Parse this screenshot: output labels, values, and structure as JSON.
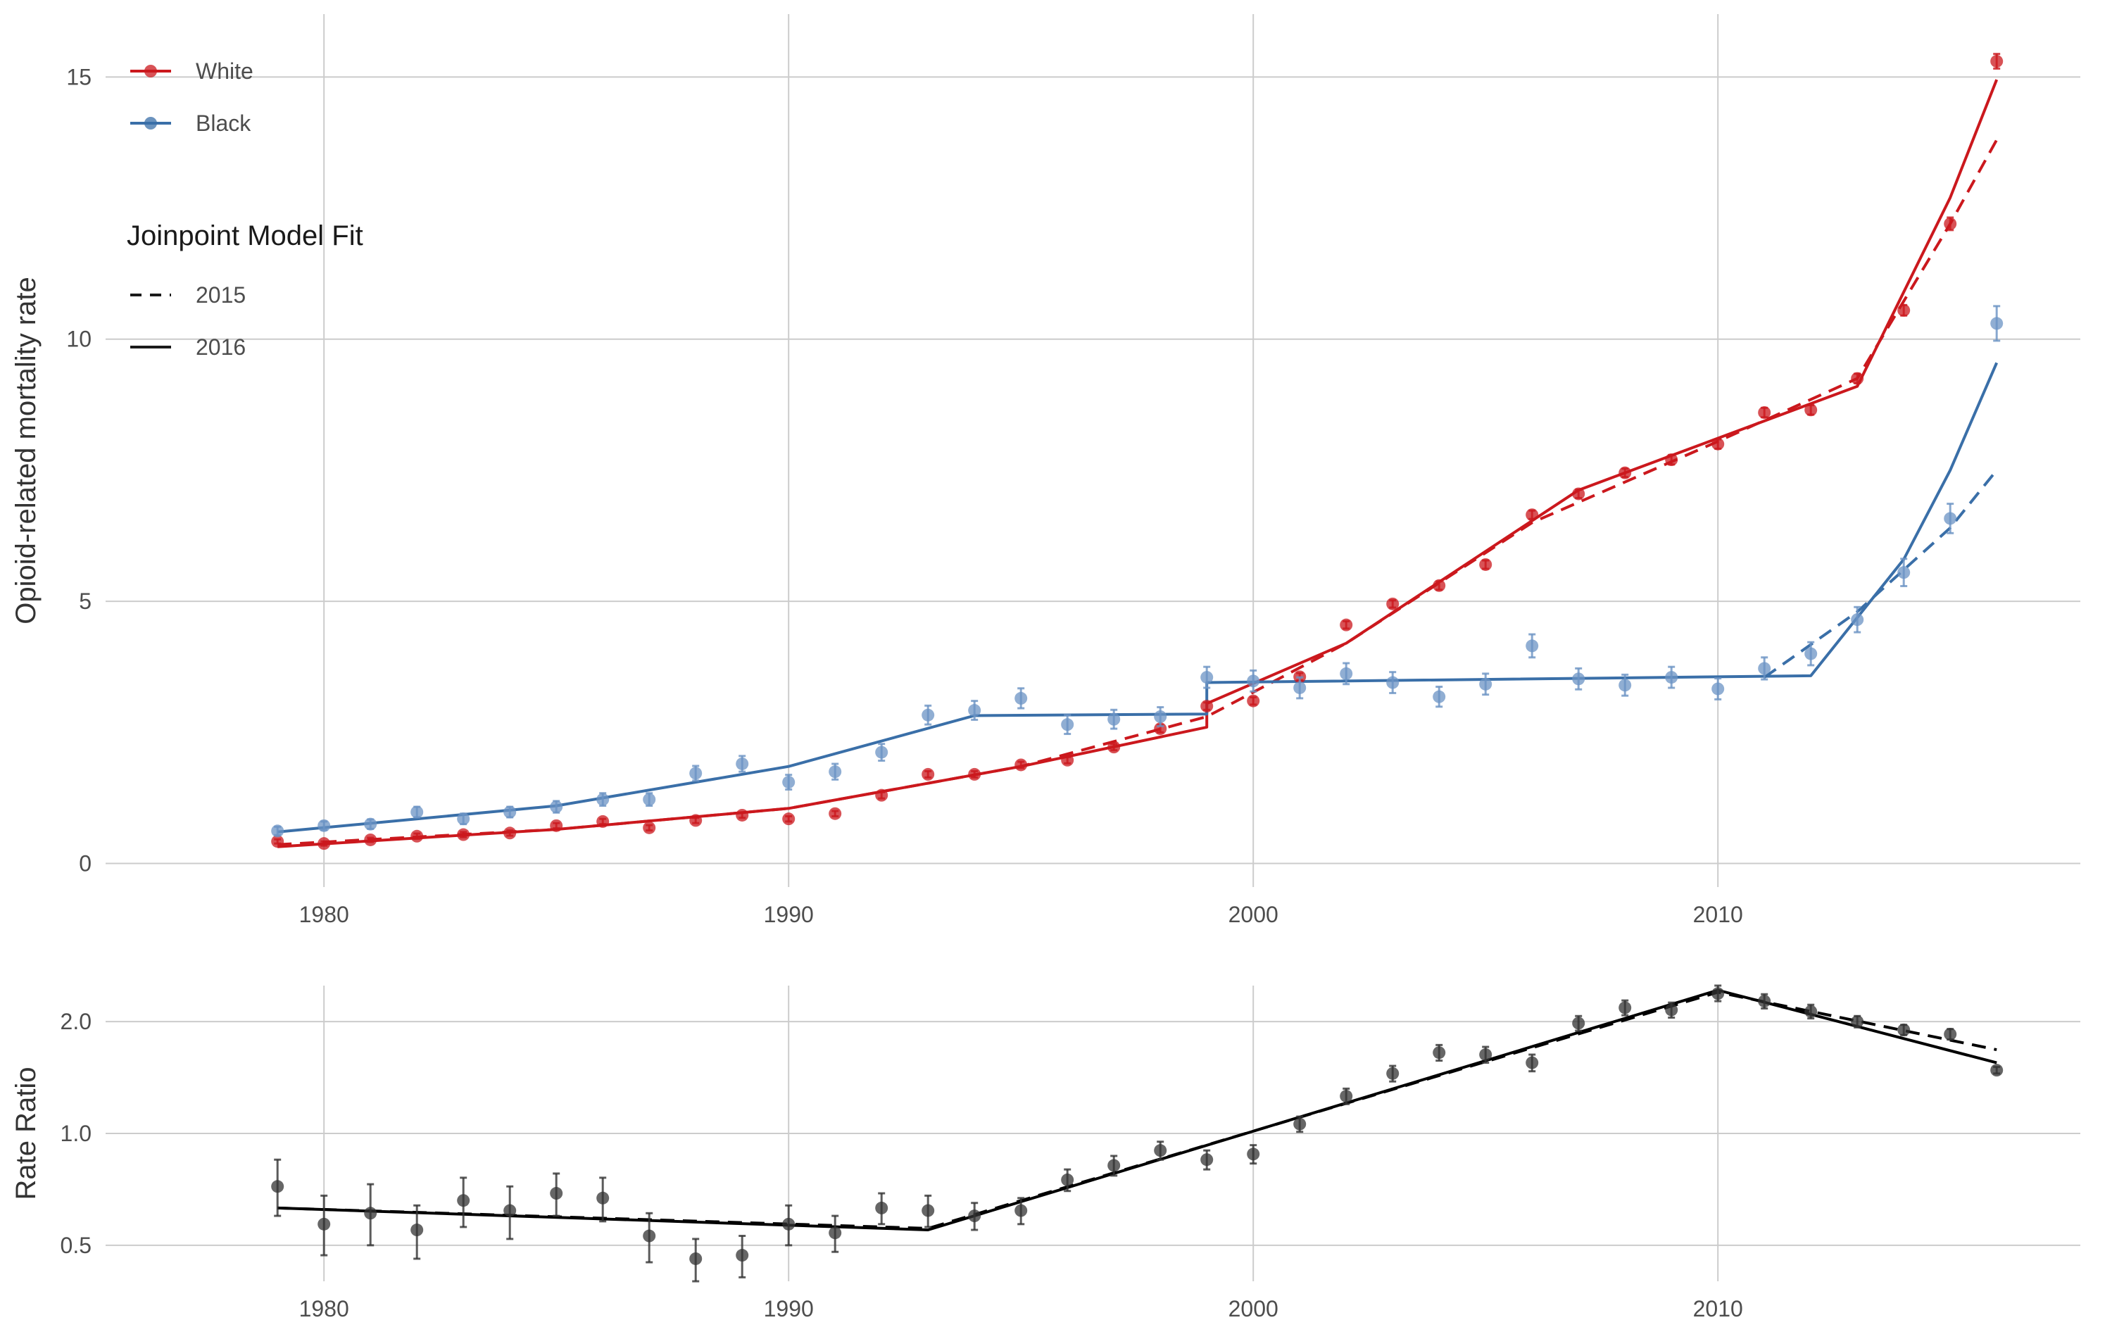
{
  "chart_data": [
    {
      "type": "line",
      "ylabel": "Opioid-related mortality rate",
      "xlabel": "",
      "xlim": [
        1975.3,
        2017.8
      ],
      "ylim": [
        -0.45,
        16.2
      ],
      "x_ticks": [
        1980,
        1990,
        2000,
        2010
      ],
      "y_ticks": [
        0,
        5,
        10,
        15
      ],
      "grid": true,
      "legend_position": "top-left",
      "legend": {
        "groups": [
          {
            "title": "",
            "entries": [
              {
                "label": "White",
                "style": "line-point",
                "color": "#cb181d"
              },
              {
                "label": "Black",
                "style": "line-point",
                "color": "#3a6fa8"
              }
            ]
          },
          {
            "title": "Joinpoint Model Fit",
            "entries": [
              {
                "label": "2015",
                "style": "dashed",
                "color": "#1a1a1a"
              },
              {
                "label": "2016",
                "style": "solid",
                "color": "#1a1a1a"
              }
            ]
          }
        ]
      },
      "observed": [
        {
          "name": "White",
          "color": "#cb181d",
          "x": [
            1979,
            1980,
            1981,
            1982,
            1983,
            1984,
            1985,
            1986,
            1987,
            1988,
            1989,
            1990,
            1991,
            1992,
            1993,
            1994,
            1995,
            1996,
            1997,
            1998,
            1999,
            2000,
            2001,
            2002,
            2003,
            2004,
            2005,
            2006,
            2007,
            2008,
            2009,
            2010,
            2011,
            2012,
            2013,
            2014,
            2015,
            2016
          ],
          "y": [
            0.42,
            0.38,
            0.45,
            0.52,
            0.55,
            0.58,
            0.72,
            0.8,
            0.68,
            0.82,
            0.92,
            0.85,
            0.95,
            1.3,
            1.7,
            1.7,
            1.88,
            1.97,
            2.22,
            2.57,
            3.0,
            3.1,
            3.56,
            4.55,
            4.95,
            5.3,
            5.7,
            6.65,
            7.05,
            7.45,
            7.7,
            8.0,
            8.6,
            8.65,
            9.25,
            10.55,
            12.2,
            15.3
          ],
          "err": [
            0.04,
            0.04,
            0.04,
            0.05,
            0.05,
            0.05,
            0.05,
            0.05,
            0.05,
            0.05,
            0.05,
            0.05,
            0.05,
            0.06,
            0.06,
            0.06,
            0.06,
            0.06,
            0.06,
            0.07,
            0.07,
            0.07,
            0.07,
            0.07,
            0.07,
            0.08,
            0.08,
            0.08,
            0.08,
            0.08,
            0.09,
            0.09,
            0.09,
            0.09,
            0.09,
            0.1,
            0.12,
            0.14
          ]
        },
        {
          "name": "Black",
          "color": "#6b93c4",
          "x": [
            1979,
            1980,
            1981,
            1982,
            1983,
            1984,
            1985,
            1986,
            1987,
            1988,
            1989,
            1990,
            1991,
            1992,
            1993,
            1994,
            1995,
            1996,
            1997,
            1998,
            1999,
            2000,
            2001,
            2002,
            2003,
            2004,
            2005,
            2006,
            2007,
            2008,
            2009,
            2010,
            2011,
            2012,
            2013,
            2014,
            2015,
            2016
          ],
          "y": [
            0.62,
            0.72,
            0.75,
            0.98,
            0.85,
            0.98,
            1.08,
            1.22,
            1.22,
            1.72,
            1.9,
            1.55,
            1.75,
            2.12,
            2.83,
            2.92,
            3.15,
            2.65,
            2.75,
            2.8,
            3.55,
            3.48,
            3.35,
            3.62,
            3.45,
            3.18,
            3.42,
            4.15,
            3.52,
            3.4,
            3.55,
            3.33,
            3.72,
            4.0,
            4.65,
            5.55,
            6.58,
            10.3
          ],
          "err": [
            0.08,
            0.08,
            0.09,
            0.1,
            0.1,
            0.1,
            0.11,
            0.12,
            0.12,
            0.14,
            0.15,
            0.14,
            0.15,
            0.16,
            0.18,
            0.18,
            0.19,
            0.18,
            0.18,
            0.18,
            0.2,
            0.2,
            0.2,
            0.2,
            0.2,
            0.19,
            0.2,
            0.22,
            0.2,
            0.2,
            0.2,
            0.2,
            0.21,
            0.22,
            0.24,
            0.26,
            0.28,
            0.33
          ]
        }
      ],
      "fits": [
        {
          "name": "White 2016",
          "group": "White",
          "model": "2016",
          "color": "#cb181d",
          "dash": false,
          "x": [
            1979,
            1985,
            1990,
            1995,
            1999,
            1999,
            2002,
            2007,
            2013,
            2015,
            2016
          ],
          "y": [
            0.32,
            0.65,
            1.05,
            1.85,
            2.6,
            3.05,
            4.2,
            7.12,
            9.1,
            12.7,
            14.95
          ]
        },
        {
          "name": "White 2015",
          "group": "White",
          "model": "2015",
          "color": "#cb181d",
          "dash": true,
          "x": [
            1979,
            1985,
            1990,
            1995,
            1999,
            2002,
            2006,
            2010,
            2013,
            2015,
            2016
          ],
          "y": [
            0.36,
            0.65,
            1.05,
            1.85,
            2.8,
            4.2,
            6.5,
            8.05,
            9.25,
            12.2,
            13.8
          ]
        },
        {
          "name": "Black 2016",
          "group": "Black",
          "model": "2016",
          "color": "#3a6fa8",
          "dash": false,
          "x": [
            1979,
            1985,
            1990,
            1994,
            1999,
            1999,
            2012,
            2014,
            2015,
            2016
          ],
          "y": [
            0.6,
            1.1,
            1.85,
            2.82,
            2.85,
            3.45,
            3.58,
            5.8,
            7.5,
            9.55
          ]
        },
        {
          "name": "Black 2015",
          "group": "Black",
          "model": "2015",
          "color": "#3a6fa8",
          "dash": true,
          "x": [
            2011,
            2013,
            2015,
            2016
          ],
          "y": [
            3.55,
            4.8,
            6.4,
            7.5
          ]
        }
      ]
    },
    {
      "type": "line",
      "ylabel": "Rate Ratio",
      "xlabel": "",
      "xlim": [
        1975.3,
        2017.8
      ],
      "ylim": [
        0.4,
        2.5
      ],
      "y_scale": "log",
      "x_ticks": [
        1980,
        1990,
        2000,
        2010
      ],
      "y_ticks": [
        0.5,
        1.0,
        2.0
      ],
      "y_tick_labels": [
        "0.5",
        "1.0",
        "2.0"
      ],
      "grid": true,
      "observed": [
        {
          "name": "",
          "color": "#333333",
          "x": [
            1979,
            1980,
            1981,
            1982,
            1983,
            1984,
            1985,
            1986,
            1987,
            1988,
            1989,
            1990,
            1991,
            1992,
            1993,
            1994,
            1995,
            1996,
            1997,
            1998,
            1999,
            2000,
            2001,
            2002,
            2003,
            2004,
            2005,
            2006,
            2007,
            2008,
            2009,
            2010,
            2011,
            2012,
            2013,
            2014,
            2015,
            2016
          ],
          "y": [
            0.72,
            0.57,
            0.61,
            0.55,
            0.66,
            0.62,
            0.69,
            0.67,
            0.53,
            0.46,
            0.47,
            0.57,
            0.54,
            0.63,
            0.62,
            0.6,
            0.62,
            0.75,
            0.82,
            0.9,
            0.85,
            0.88,
            1.06,
            1.26,
            1.45,
            1.65,
            1.63,
            1.55,
            1.98,
            2.18,
            2.15,
            2.38,
            2.27,
            2.13,
            2.0,
            1.9,
            1.85,
            1.48
          ],
          "lo": [
            0.6,
            0.47,
            0.5,
            0.46,
            0.56,
            0.52,
            0.6,
            0.58,
            0.45,
            0.4,
            0.41,
            0.5,
            0.48,
            0.57,
            0.56,
            0.55,
            0.57,
            0.7,
            0.77,
            0.85,
            0.8,
            0.83,
            1.01,
            1.2,
            1.38,
            1.57,
            1.55,
            1.47,
            1.89,
            2.08,
            2.05,
            2.27,
            2.17,
            2.04,
            1.93,
            1.84,
            1.79,
            1.45
          ],
          "hi": [
            0.85,
            0.68,
            0.73,
            0.64,
            0.76,
            0.72,
            0.78,
            0.76,
            0.61,
            0.52,
            0.53,
            0.64,
            0.6,
            0.69,
            0.68,
            0.65,
            0.67,
            0.8,
            0.87,
            0.95,
            0.9,
            0.93,
            1.11,
            1.32,
            1.52,
            1.73,
            1.71,
            1.63,
            2.07,
            2.28,
            2.25,
            2.5,
            2.37,
            2.22,
            2.07,
            1.96,
            1.91,
            1.51
          ]
        }
      ],
      "fits": [
        {
          "name": "Rate Ratio 2016",
          "model": "2016",
          "color": "#000000",
          "dash": false,
          "x": [
            1979,
            1993,
            2010,
            2016
          ],
          "y": [
            0.63,
            0.55,
            2.43,
            1.55
          ]
        },
        {
          "name": "Rate Ratio 2015",
          "model": "2015",
          "color": "#000000",
          "dash": true,
          "x": [
            1979,
            1993,
            2010,
            2016
          ],
          "y": [
            0.63,
            0.555,
            2.4,
            1.68
          ]
        }
      ]
    }
  ]
}
